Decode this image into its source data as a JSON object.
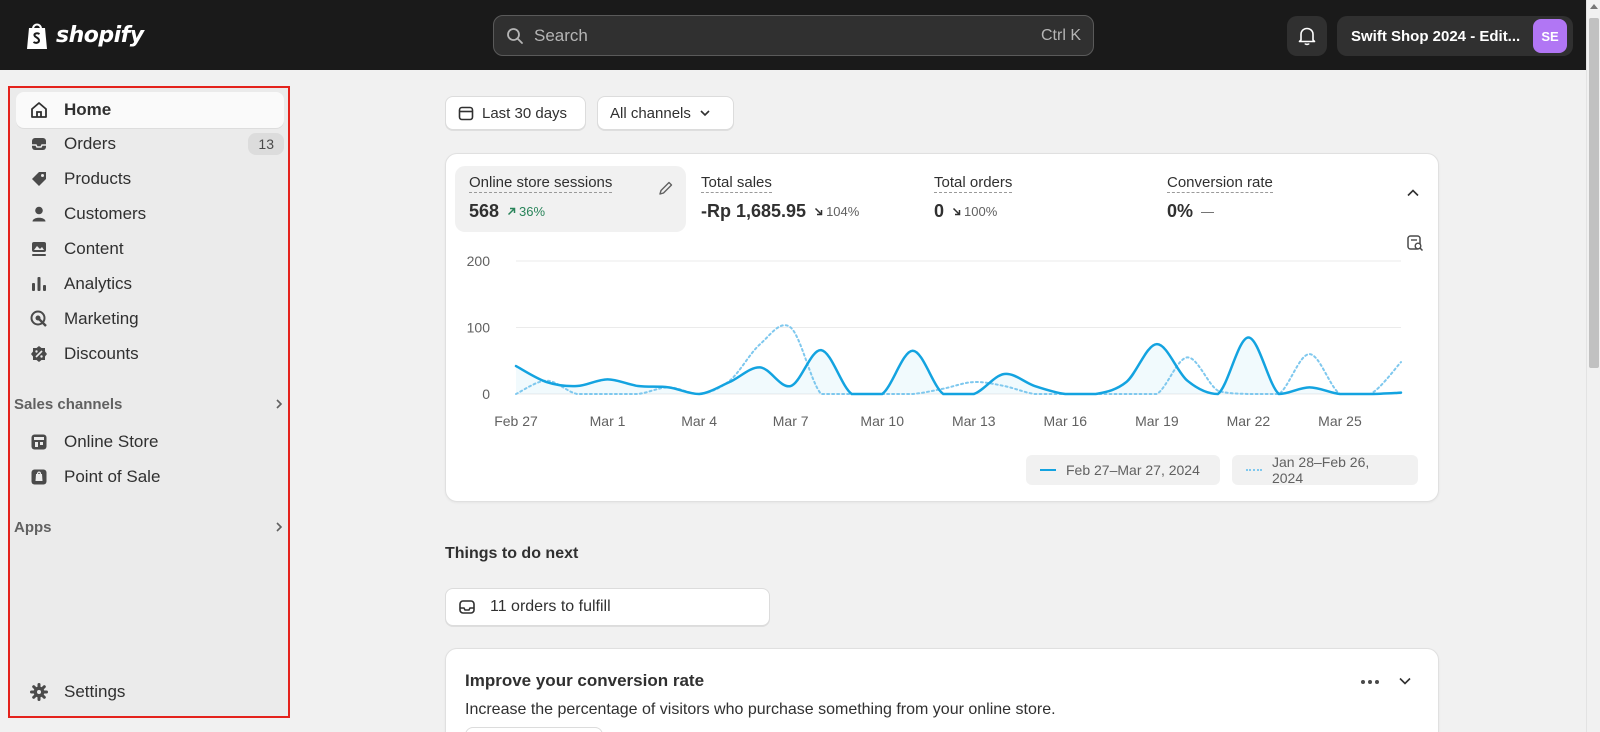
{
  "topbar": {
    "brand": "shopify",
    "search_placeholder": "Search",
    "search_shortcut": "Ctrl K",
    "store_name": "Swift Shop 2024 - Edit...",
    "store_initials": "SE"
  },
  "sidebar": {
    "items": [
      {
        "label": "Home",
        "icon": "home-icon",
        "active": true
      },
      {
        "label": "Orders",
        "icon": "orders-icon",
        "badge": "13"
      },
      {
        "label": "Products",
        "icon": "tag-icon"
      },
      {
        "label": "Customers",
        "icon": "person-icon"
      },
      {
        "label": "Content",
        "icon": "content-icon"
      },
      {
        "label": "Analytics",
        "icon": "bar-chart-icon"
      },
      {
        "label": "Marketing",
        "icon": "target-icon"
      },
      {
        "label": "Discounts",
        "icon": "discount-icon"
      }
    ],
    "sales_channels_label": "Sales channels",
    "channels": [
      {
        "label": "Online Store",
        "icon": "store-icon"
      },
      {
        "label": "Point of Sale",
        "icon": "pos-icon"
      }
    ],
    "apps_label": "Apps",
    "settings_label": "Settings"
  },
  "filters": {
    "date_range": "Last 30 days",
    "channels": "All channels"
  },
  "metrics": [
    {
      "label": "Online store sessions",
      "value": "568",
      "change": "36%",
      "direction": "up"
    },
    {
      "label": "Total sales",
      "value": "-Rp 1,685.95",
      "change": "104%",
      "direction": "down"
    },
    {
      "label": "Total orders",
      "value": "0",
      "change": "100%",
      "direction": "down"
    },
    {
      "label": "Conversion rate",
      "value": "0%",
      "change": "—",
      "direction": "none"
    }
  ],
  "chart_data": {
    "type": "line",
    "x": [
      "Feb 27",
      "Feb 28",
      "Feb 29",
      "Mar 1",
      "Mar 2",
      "Mar 3",
      "Mar 4",
      "Mar 5",
      "Mar 6",
      "Mar 7",
      "Mar 8",
      "Mar 9",
      "Mar 10",
      "Mar 11",
      "Mar 12",
      "Mar 13",
      "Mar 14",
      "Mar 15",
      "Mar 16",
      "Mar 17",
      "Mar 18",
      "Mar 19",
      "Mar 20",
      "Mar 21",
      "Mar 22",
      "Mar 23",
      "Mar 24",
      "Mar 25",
      "Mar 26",
      "Mar 27"
    ],
    "x_tick_labels": [
      "Feb 27",
      "Mar 1",
      "Mar 4",
      "Mar 7",
      "Mar 10",
      "Mar 13",
      "Mar 16",
      "Mar 19",
      "Mar 22",
      "Mar 25"
    ],
    "series": [
      {
        "name": "Feb 27–Mar 27, 2024",
        "style": "solid",
        "color": "#13a3e0",
        "values": [
          42,
          18,
          12,
          22,
          12,
          10,
          0,
          18,
          40,
          12,
          66,
          0,
          0,
          65,
          0,
          0,
          30,
          12,
          0,
          0,
          18,
          75,
          20,
          0,
          85,
          0,
          10,
          0,
          0,
          2
        ]
      },
      {
        "name": "Jan 28–Feb 26, 2024",
        "style": "dotted",
        "color": "#7fc8ee",
        "values": [
          0,
          20,
          0,
          0,
          0,
          10,
          0,
          20,
          75,
          100,
          0,
          0,
          0,
          0,
          8,
          18,
          12,
          0,
          0,
          0,
          0,
          0,
          55,
          5,
          0,
          0,
          60,
          0,
          0,
          48
        ]
      }
    ],
    "y_ticks": [
      0,
      100,
      200
    ],
    "ylim": [
      0,
      200
    ],
    "grid": true,
    "legend": "bottom-right"
  },
  "todo": {
    "title": "Things to do next",
    "orders_to_fulfill": "11 orders to fulfill"
  },
  "improve": {
    "title": "Improve your conversion rate",
    "description": "Increase the percentage of visitors who purchase something from your online store."
  }
}
